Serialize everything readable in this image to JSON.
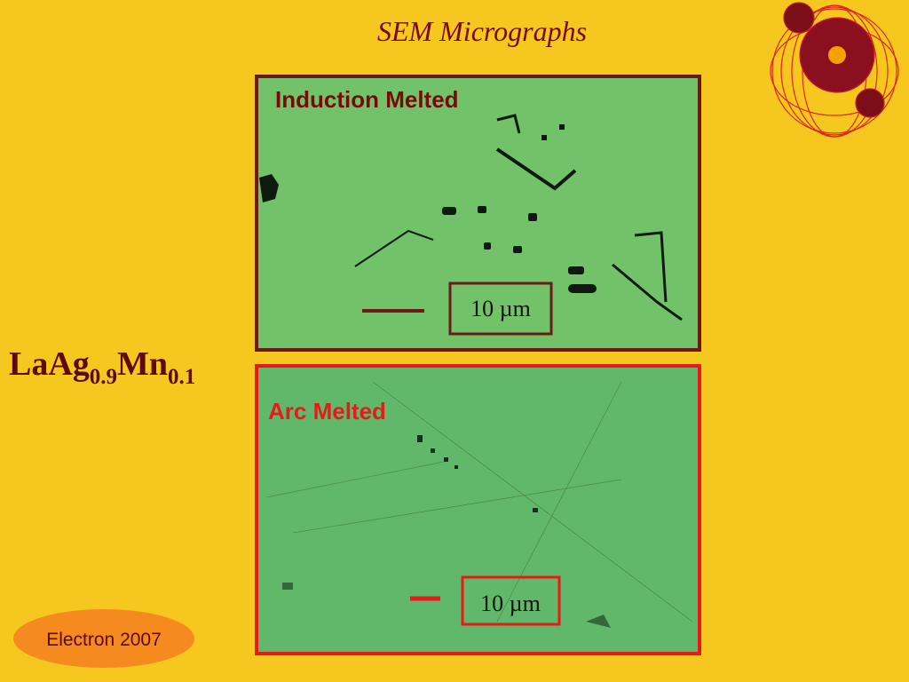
{
  "header": {
    "title": "SEM Micrographs"
  },
  "formula": {
    "base1": "LaAg",
    "sub1": "0.9",
    "base2": "Mn",
    "sub2": "0.1"
  },
  "panels": [
    {
      "label": "Induction Melted",
      "scale": "10 µm"
    },
    {
      "label": "Arc Melted",
      "scale": "10 µm"
    }
  ],
  "footer": {
    "badge": "Electron 2007"
  }
}
